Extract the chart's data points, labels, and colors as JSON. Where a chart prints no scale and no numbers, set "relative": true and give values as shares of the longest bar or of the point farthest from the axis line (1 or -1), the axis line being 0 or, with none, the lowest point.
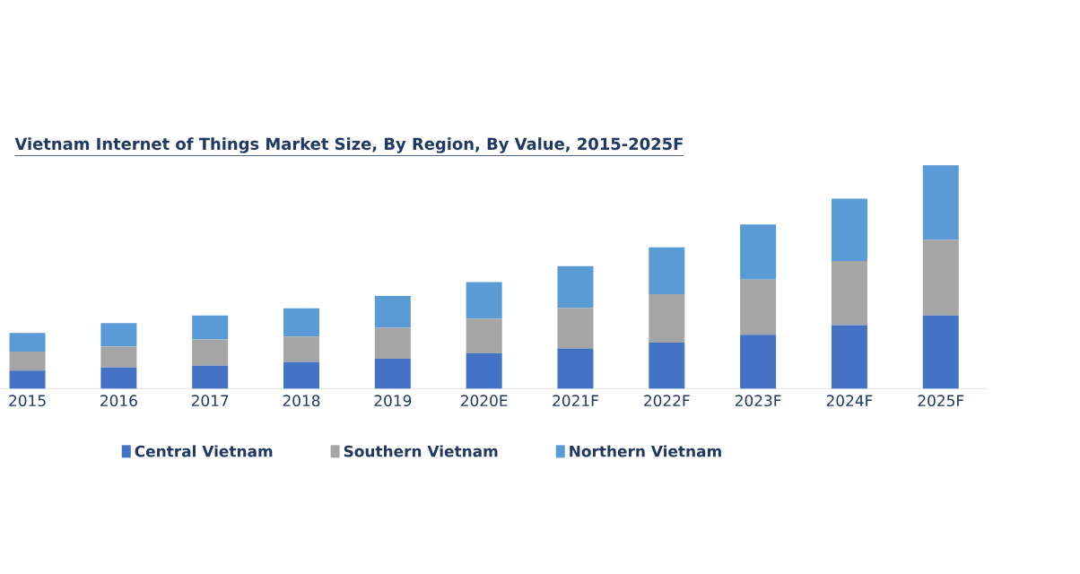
{
  "chart_data": {
    "type": "bar",
    "title": "Vietnam Internet of Things Market Size, By Region, By Value, 2015-2025F",
    "categories": [
      "2015",
      "2016",
      "2017",
      "2018",
      "2019",
      "2020E",
      "2021F",
      "2022F",
      "2023F",
      "2024F",
      "2025F"
    ],
    "stacked": true,
    "relative": true,
    "legend": "bottom",
    "series": [
      {
        "name": "Central Vietnam",
        "color": "#4472c4",
        "values": [
          0.08,
          0.094,
          0.102,
          0.118,
          0.134,
          0.158,
          0.18,
          0.206,
          0.241,
          0.284,
          0.327
        ]
      },
      {
        "name": "Southern Vietnam",
        "color": "#a5a5a5",
        "values": [
          0.086,
          0.094,
          0.118,
          0.115,
          0.139,
          0.155,
          0.18,
          0.217,
          0.247,
          0.287,
          0.338
        ]
      },
      {
        "name": "Northern Vietnam",
        "color": "#5b9bd5",
        "values": [
          0.083,
          0.105,
          0.107,
          0.126,
          0.142,
          0.164,
          0.188,
          0.209,
          0.247,
          0.279,
          0.335
        ]
      }
    ]
  }
}
